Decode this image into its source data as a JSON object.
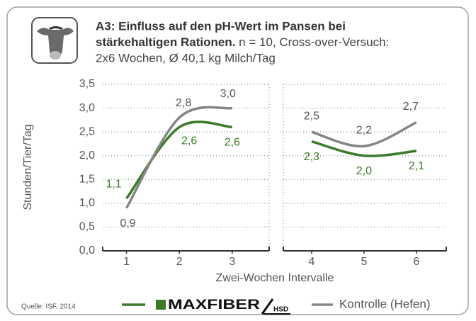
{
  "chart_data": {
    "type": "line",
    "title_lines": [
      "A3: Einfluss auf den pH-Wert im Pansen bei",
      "stärkehaltigen Rationen."
    ],
    "subtitle_lines": [
      " n = 10, Cross-over-Versuch:",
      "2x6 Wochen, Ø 40,1 kg Milch/Tag"
    ],
    "y_label": "Stunden/Tier/Tag",
    "x_label": "Zwei-Wochen Intervalle",
    "source": "Quelle: ISF, 2014",
    "x": [
      1,
      2,
      3,
      4,
      5,
      6
    ],
    "xticks": [
      1,
      2,
      3,
      4,
      5,
      6
    ],
    "xlim_panels": [
      [
        0.55,
        3.7
      ],
      [
        3.46,
        6.57
      ]
    ],
    "ylim": [
      0,
      3.5
    ],
    "yticks": [
      {
        "value": 0,
        "label": "0,0"
      },
      {
        "value": 0.5,
        "label": "0,5"
      },
      {
        "value": 1,
        "label": "1,0"
      },
      {
        "value": 1.5,
        "label": "1,5"
      },
      {
        "value": 2,
        "label": "2,0"
      },
      {
        "value": 2.5,
        "label": "2,5"
      },
      {
        "value": 3,
        "label": "3,0"
      },
      {
        "value": 3.5,
        "label": "3,5"
      }
    ],
    "grid": true,
    "legend_logo_suffix": "HSD",
    "series": [
      {
        "name": "MAXFIBER",
        "color": "#3b7a28",
        "values": [
          1.1,
          2.6,
          2.6,
          2.3,
          2.0,
          2.1
        ],
        "value_labels": [
          "1,1",
          "2,6",
          "2,6",
          "2,3",
          "2,0",
          "2,1"
        ]
      },
      {
        "name": "Kontrolle (Hefen)",
        "color": "#858585",
        "values": [
          0.9,
          2.8,
          3.0,
          2.5,
          2.2,
          2.7
        ],
        "value_labels": [
          "0,9",
          "2,8",
          "3,0",
          "2,5",
          "2,2",
          "2,7"
        ]
      }
    ]
  }
}
